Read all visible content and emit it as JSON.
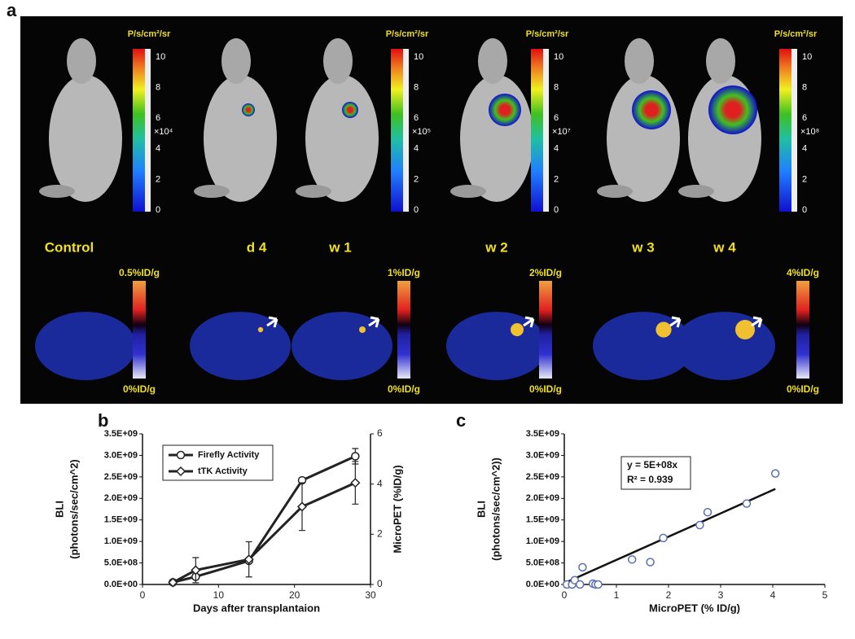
{
  "panel_a": {
    "label": "a",
    "bli_units": [
      "P/s/cm²/sr",
      "P/s/cm²/sr",
      "P/s/cm²/sr",
      "P/s/cm²/sr"
    ],
    "bli_ticks": [
      0,
      2,
      4,
      6,
      8,
      10
    ],
    "bli_multipliers": [
      "×10⁴",
      "×10⁵",
      "×10⁷",
      "×10⁸"
    ],
    "timepoints": [
      "Control",
      "d 4",
      "w 1",
      "w 2",
      "w 3",
      "w 4"
    ],
    "pet_top": [
      "0.5%ID/g",
      "1%ID/g",
      "2%ID/g",
      "4%ID/g"
    ],
    "pet_bottom": [
      "0%ID/g",
      "0%ID/g",
      "0%ID/g",
      "0%ID/g"
    ]
  },
  "chart_data": [
    {
      "type": "line",
      "panel": "b",
      "x": [
        4,
        7,
        14,
        21,
        28
      ],
      "xlim": [
        0,
        30
      ],
      "xticks": [
        0,
        10,
        20,
        30
      ],
      "xlabel": "Days after transplantaion",
      "ylabel": [
        "BLI",
        "(photons/sec/cm^2)"
      ],
      "y2label": "MicroPET (%ID/g)",
      "ylim": [
        0,
        3500000000
      ],
      "yticks": [
        {
          "value": 0,
          "label": "0.0E+00"
        },
        {
          "value": 500000000,
          "label": "5.0E+08"
        },
        {
          "value": 1000000000,
          "label": "1.0E+09"
        },
        {
          "value": 1500000000,
          "label": "1.5E+09"
        },
        {
          "value": 2000000000,
          "label": "2.0E+09"
        },
        {
          "value": 2500000000,
          "label": "2.5E+09"
        },
        {
          "value": 3000000000,
          "label": "3.0E+09"
        },
        {
          "value": 3500000000,
          "label": "3.5E+09"
        }
      ],
      "y2lim": [
        0,
        6
      ],
      "y2ticks": [
        0,
        2,
        4,
        6
      ],
      "series": [
        {
          "name": "Firefly Activity",
          "color": "#222222",
          "marker": "circle",
          "values": [
            50000000,
            180000000,
            550000000,
            2420000000,
            2980000000
          ],
          "errors": [
            20000000,
            60000000,
            50000000,
            60000000,
            180000000
          ]
        },
        {
          "name": "tTK Activity",
          "color": "#222222",
          "marker": "diamond",
          "axis": "y2",
          "values": [
            0.08,
            0.57,
            1.0,
            3.1,
            4.05
          ],
          "errors": [
            0.03,
            0.5,
            0.7,
            0.95,
            0.85
          ]
        }
      ]
    },
    {
      "type": "scatter",
      "panel": "c",
      "xlim": [
        0,
        5
      ],
      "xticks": [
        0,
        1,
        2,
        3,
        4,
        5
      ],
      "xlabel": "MicroPET (% ID/g)",
      "ylabel": [
        "BLI",
        "(photons/sec/cm^2))"
      ],
      "ylim": [
        0,
        3500000000
      ],
      "yticks": [
        {
          "value": 0,
          "label": "0.0E+00"
        },
        {
          "value": 500000000,
          "label": "5.0E+08"
        },
        {
          "value": 1000000000,
          "label": "1.0E+09"
        },
        {
          "value": 1500000000,
          "label": "1.5E+09"
        },
        {
          "value": 2000000000,
          "label": "2.0E+09"
        },
        {
          "value": 2500000000,
          "label": "2.5E+09"
        },
        {
          "value": 3000000000,
          "label": "3.0E+09"
        },
        {
          "value": 3500000000,
          "label": "3.5E+09"
        }
      ],
      "x": [
        0.05,
        0.15,
        0.2,
        0.3,
        0.35,
        0.55,
        0.6,
        0.65,
        1.3,
        1.65,
        1.9,
        2.6,
        2.75,
        3.5,
        4.05
      ],
      "values": [
        0,
        0,
        100000000,
        0,
        400000000,
        20000000,
        0,
        0,
        580000000,
        520000000,
        1080000000,
        1380000000,
        1680000000,
        1880000000,
        2580000000
      ],
      "color": "#5a6fb0",
      "trendline": {
        "x": [
          0,
          4.05
        ],
        "y": [
          30000000,
          2220000000
        ],
        "color": "#111111"
      },
      "annotations": [
        "y = 5E+08x",
        "R² = 0.939"
      ]
    }
  ]
}
